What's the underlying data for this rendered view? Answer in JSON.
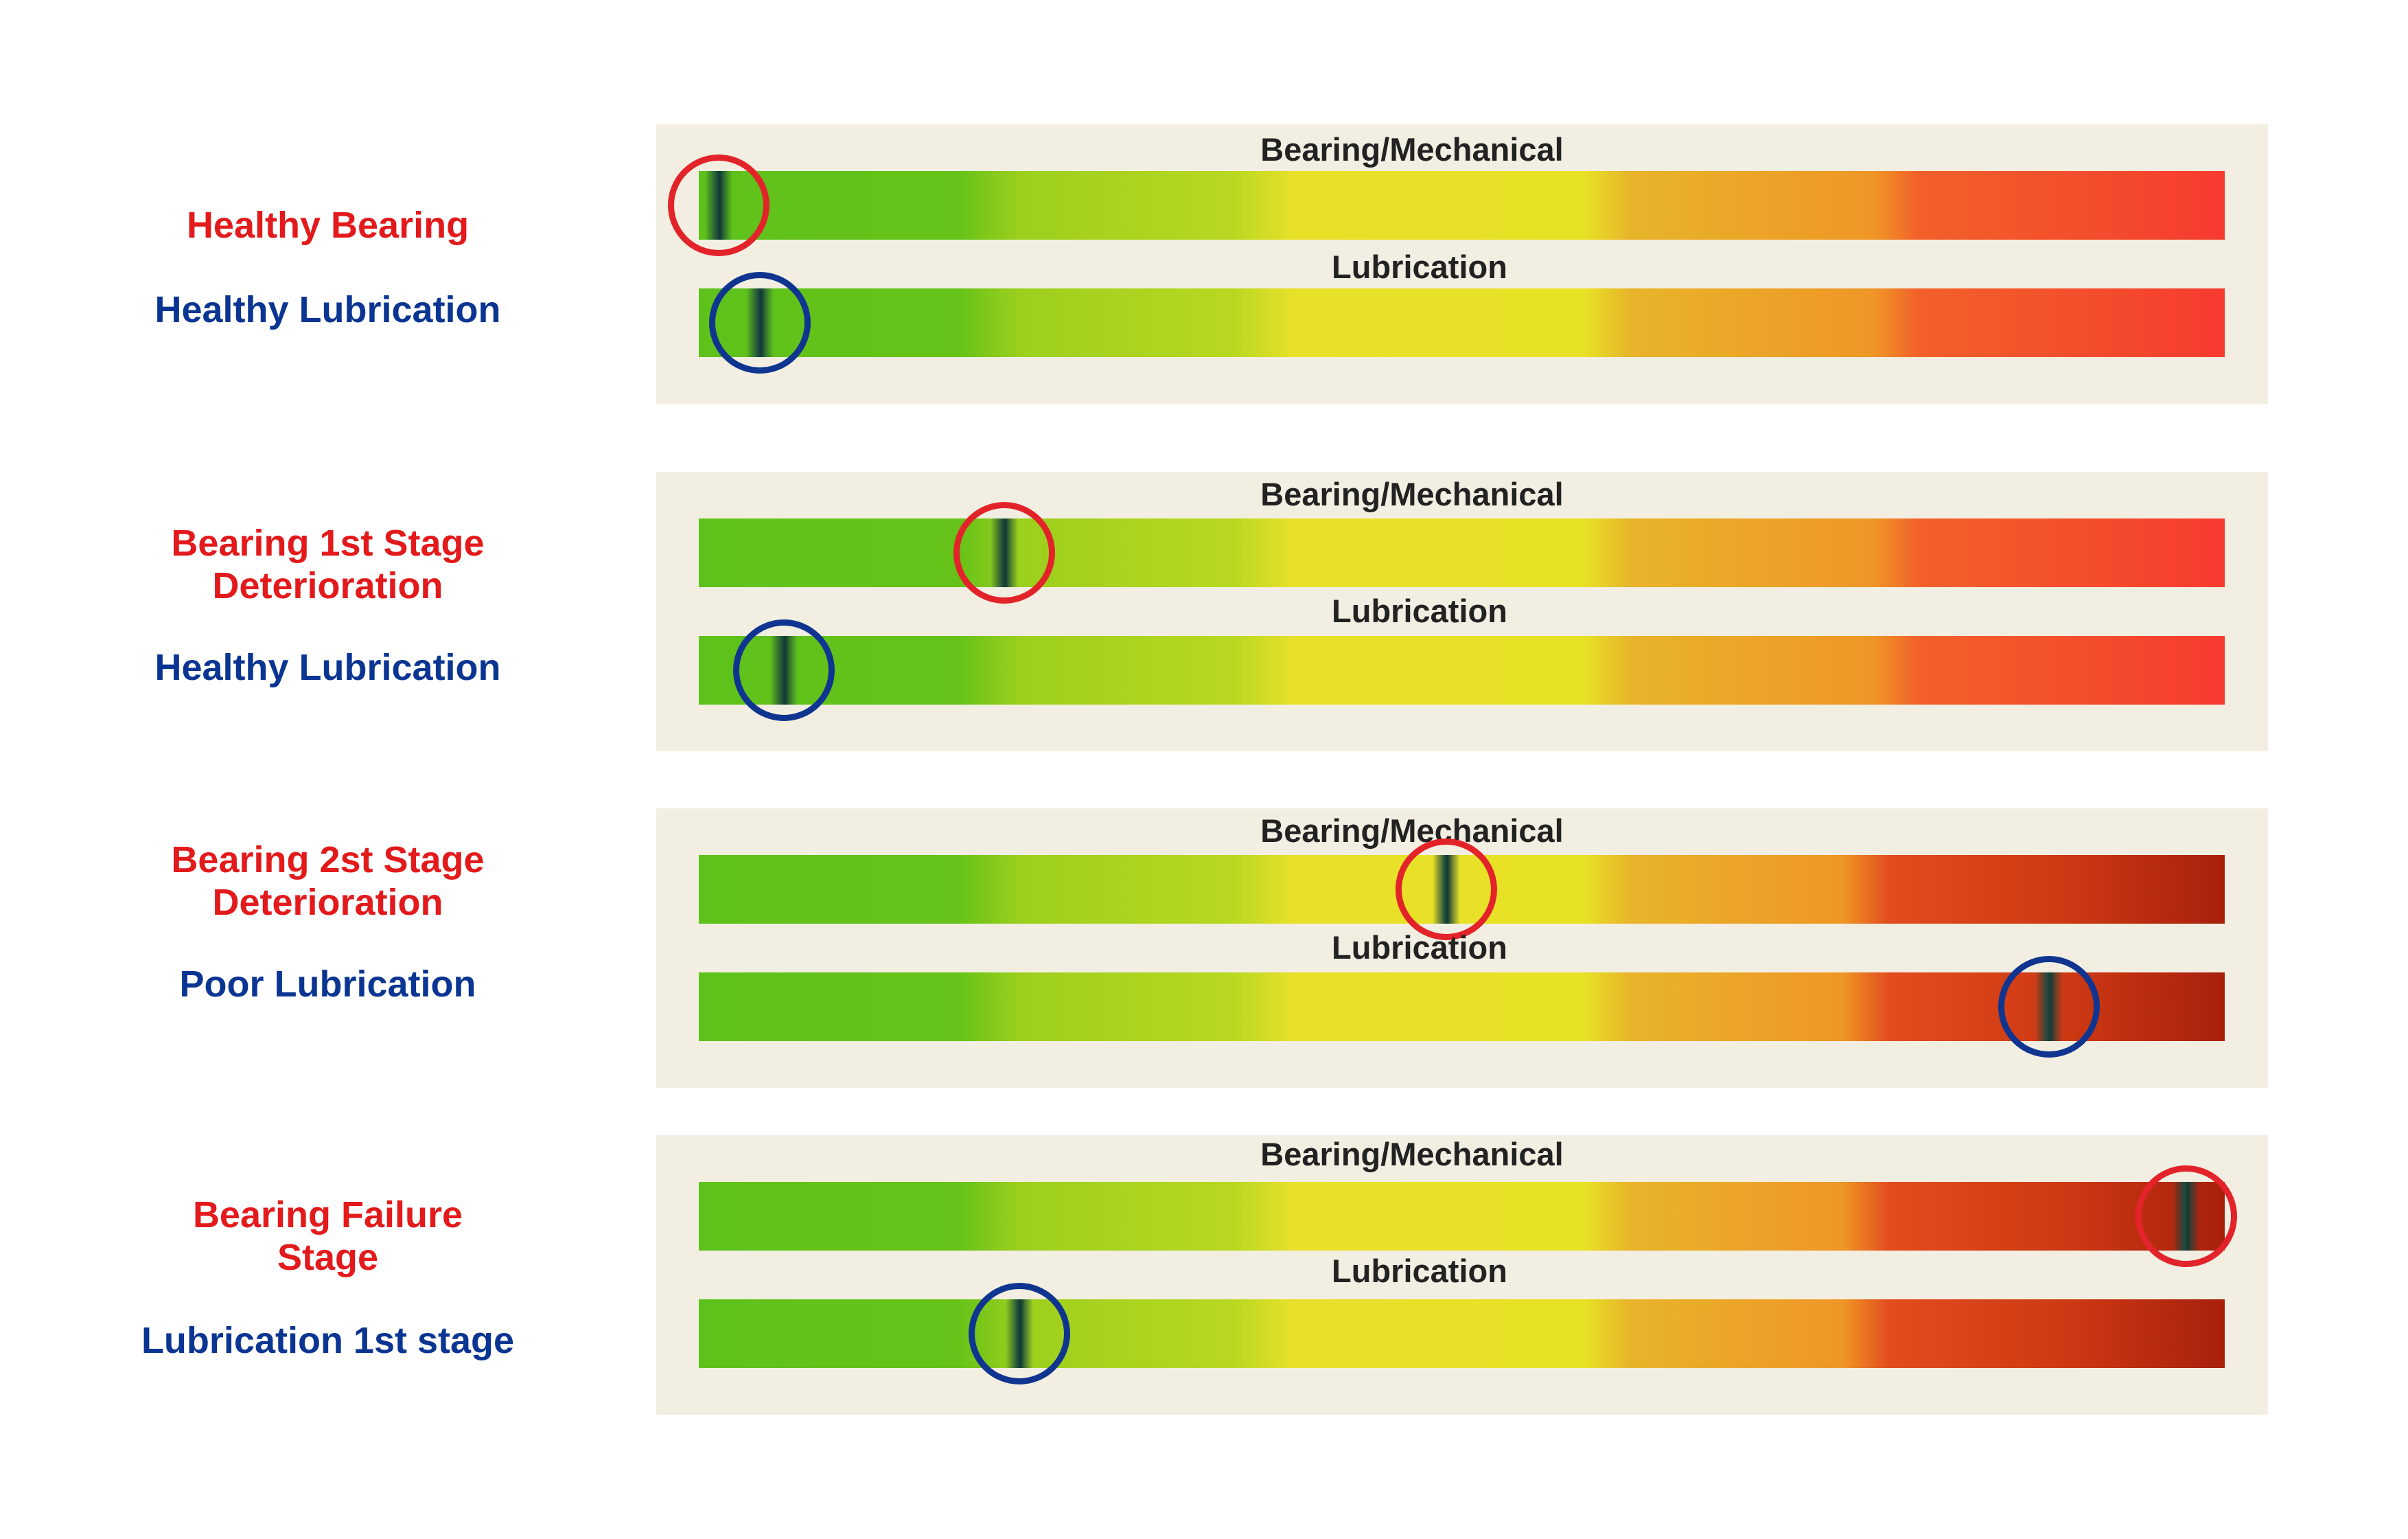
{
  "bar_titles": {
    "bearing": "Bearing/Mechanical",
    "lubrication": "Lubrication"
  },
  "colors": {
    "bearing_label": "#e31a1c",
    "lubrication_label": "#0b3592",
    "bearing_ring": "#e3232a",
    "lubrication_ring": "#0f3590",
    "panel_background": "#f2efe2"
  },
  "scenarios": [
    {
      "bearing_label_lines": [
        "Healthy Bearing"
      ],
      "lubrication_label": "Healthy Lubrication",
      "bearing_level": 0.013,
      "lubrication_level": 0.04,
      "scale": "normal"
    },
    {
      "bearing_label_lines": [
        "Bearing 1st Stage",
        "Deterioration"
      ],
      "lubrication_label": "Healthy Lubrication",
      "bearing_level": 0.2,
      "lubrication_level": 0.056,
      "scale": "normal"
    },
    {
      "bearing_label_lines": [
        "Bearing 2st Stage",
        "Deterioration"
      ],
      "lubrication_label": "Poor Lubrication",
      "bearing_level": 0.49,
      "lubrication_level": 0.885,
      "scale": "severe"
    },
    {
      "bearing_label_lines": [
        "Bearing Failure",
        "Stage"
      ],
      "lubrication_label": "Lubrication 1st stage",
      "bearing_level": 0.975,
      "lubrication_level": 0.21,
      "scale": "severe"
    }
  ]
}
